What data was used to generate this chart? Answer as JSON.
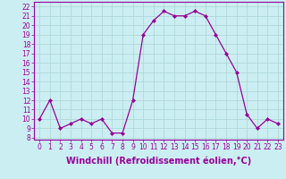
{
  "x": [
    0,
    1,
    2,
    3,
    4,
    5,
    6,
    7,
    8,
    9,
    10,
    11,
    12,
    13,
    14,
    15,
    16,
    17,
    18,
    19,
    20,
    21,
    22,
    23
  ],
  "y": [
    10,
    12,
    9,
    9.5,
    10,
    9.5,
    10,
    8.5,
    8.5,
    12,
    19,
    20.5,
    21.5,
    21,
    21,
    21.5,
    21,
    19,
    17,
    15,
    10.5,
    9,
    10,
    9.5
  ],
  "line_color": "#990099",
  "marker": "D",
  "marker_size": 2.0,
  "linewidth": 0.9,
  "xlabel": "Windchill (Refroidissement éolien,°C)",
  "ylabel_ticks": [
    8,
    9,
    10,
    11,
    12,
    13,
    14,
    15,
    16,
    17,
    18,
    19,
    20,
    21,
    22
  ],
  "ylim": [
    7.8,
    22.5
  ],
  "xlim": [
    -0.5,
    23.5
  ],
  "xticks": [
    0,
    1,
    2,
    3,
    4,
    5,
    6,
    7,
    8,
    9,
    10,
    11,
    12,
    13,
    14,
    15,
    16,
    17,
    18,
    19,
    20,
    21,
    22,
    23
  ],
  "background_color": "#cbeef3",
  "grid_color": "#b0d8d8",
  "tick_color": "#990099",
  "label_color": "#990099",
  "tick_fontsize": 5.5,
  "xlabel_fontsize": 7.0,
  "fig_width": 3.2,
  "fig_height": 2.0,
  "dpi": 100
}
